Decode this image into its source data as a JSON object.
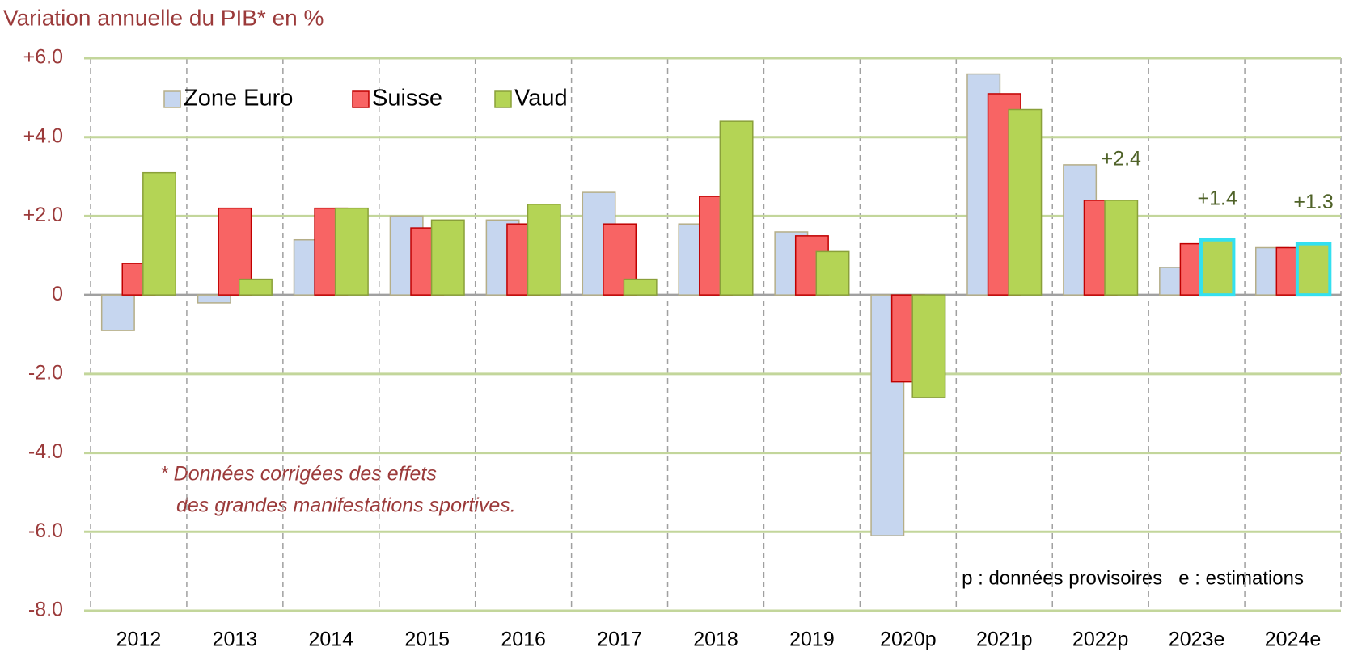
{
  "chart_data": {
    "type": "bar",
    "title": "Variation  annuelle du PIB* en %",
    "categories": [
      "2012",
      "2013",
      "2014",
      "2015",
      "2016",
      "2017",
      "2018",
      "2019",
      "2020p",
      "2021p",
      "2022p",
      "2023e",
      "2024e"
    ],
    "series": [
      {
        "name": "Zone Euro",
        "color": "#c6d6ef",
        "stroke": "#b5ae88",
        "values": [
          -0.9,
          -0.2,
          1.4,
          2.0,
          1.9,
          2.6,
          1.8,
          1.6,
          -6.1,
          5.6,
          3.3,
          0.7,
          1.2
        ]
      },
      {
        "name": "Suisse",
        "color": "#f86464",
        "stroke": "#c00000",
        "values": [
          0.8,
          2.2,
          2.2,
          1.7,
          1.8,
          1.8,
          2.5,
          1.5,
          -2.2,
          5.1,
          2.4,
          1.3,
          1.2
        ]
      },
      {
        "name": "Vaud",
        "color": "#b4d455",
        "stroke": "#8aa03a",
        "values": [
          3.1,
          0.4,
          2.2,
          1.9,
          2.3,
          0.4,
          4.4,
          1.1,
          -2.6,
          4.7,
          2.4,
          1.4,
          1.3
        ],
        "value_labels": [
          null,
          null,
          null,
          null,
          null,
          null,
          null,
          null,
          null,
          null,
          "+2.4",
          "+1.4",
          "+1.3"
        ]
      }
    ],
    "highlight": {
      "series": "Vaud",
      "categories": [
        "2023e",
        "2024e"
      ],
      "color": "#33e0f0"
    },
    "ylim": [
      -8,
      6
    ],
    "yticks": [
      {
        "value": 6,
        "label": "+6.0"
      },
      {
        "value": 4,
        "label": "+4.0"
      },
      {
        "value": 2,
        "label": "+2.0"
      },
      0,
      {
        "value": -2,
        "label": "-2.0"
      },
      {
        "value": -4,
        "label": "-4.0"
      },
      {
        "value": -6,
        "label": "-6.0"
      },
      {
        "value": -8,
        "label": "-8.0"
      }
    ],
    "grid": true,
    "legend": "top-left",
    "annotations": [
      "* Données corrigées des effets",
      "des grandes manifestations sportives.",
      "p : données provisoires   e : estimations"
    ]
  }
}
